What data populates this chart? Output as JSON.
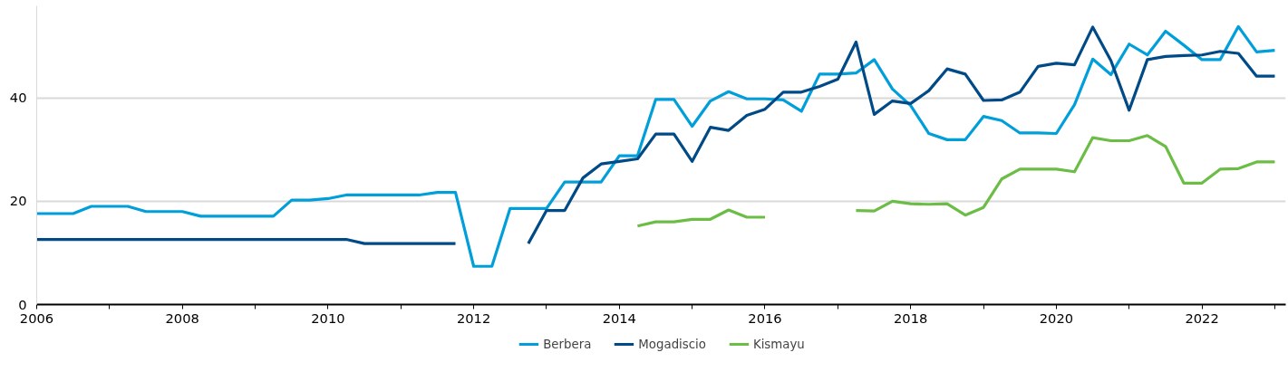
{
  "chart_data": {
    "type": "line",
    "x": [
      2006,
      2006.25,
      2006.5,
      2006.75,
      2007,
      2007.25,
      2007.5,
      2007.75,
      2008,
      2008.25,
      2008.5,
      2008.75,
      2009,
      2009.25,
      2009.5,
      2009.75,
      2010,
      2010.25,
      2010.5,
      2010.75,
      2011,
      2011.25,
      2011.5,
      2011.75,
      2012,
      2012.25,
      2012.5,
      2012.75,
      2013,
      2013.25,
      2013.5,
      2013.75,
      2014,
      2014.25,
      2014.5,
      2014.75,
      2015,
      2015.25,
      2015.5,
      2015.75,
      2016,
      2016.25,
      2016.5,
      2016.75,
      2017,
      2017.25,
      2017.5,
      2017.75,
      2018,
      2018.25,
      2018.5,
      2018.75,
      2019,
      2019.25,
      2019.5,
      2019.75,
      2020,
      2020.25,
      2020.5,
      2020.75,
      2021,
      2021.25,
      2021.5,
      2021.75,
      2022,
      2022.25,
      2022.5,
      2022.75,
      2023
    ],
    "series": [
      {
        "name": "Berbera",
        "color": "#009fda",
        "values": [
          17.6,
          17.6,
          17.6,
          19.0,
          19.0,
          19.0,
          18.0,
          18.0,
          18.0,
          17.1,
          17.1,
          17.1,
          17.1,
          17.1,
          20.2,
          20.2,
          20.5,
          21.2,
          21.2,
          21.2,
          21.2,
          21.2,
          21.7,
          21.7,
          7.4,
          7.4,
          18.6,
          18.6,
          18.6,
          23.7,
          23.7,
          23.7,
          28.8,
          28.8,
          39.7,
          39.7,
          34.5,
          39.4,
          41.2,
          39.8,
          39.8,
          39.6,
          37.4,
          44.6,
          44.6,
          44.8,
          47.4,
          41.7,
          38.5,
          33.1,
          31.9,
          31.9,
          36.4,
          35.6,
          33.2,
          33.2,
          33.1,
          38.7,
          47.5,
          44.5,
          50.4,
          48.3,
          52.9,
          50.2,
          47.4,
          47.4,
          53.8,
          48.9,
          49.2
        ]
      },
      {
        "name": "Mogadiscio",
        "color": "#004b87",
        "values": [
          12.6,
          12.6,
          12.6,
          12.6,
          12.6,
          12.6,
          12.6,
          12.6,
          12.6,
          12.6,
          12.6,
          12.6,
          12.6,
          12.6,
          12.6,
          12.6,
          12.6,
          12.6,
          11.8,
          11.8,
          11.8,
          11.8,
          11.8,
          11.8,
          null,
          null,
          null,
          11.8,
          18.2,
          18.2,
          24.5,
          27.2,
          27.7,
          28.2,
          33.0,
          33.0,
          27.7,
          34.3,
          33.7,
          36.6,
          37.8,
          41.1,
          41.1,
          42.2,
          43.6,
          50.8,
          36.8,
          39.4,
          38.9,
          41.4,
          45.6,
          44.6,
          39.5,
          39.6,
          41.1,
          46.1,
          46.7,
          46.4,
          53.7,
          47.2,
          37.6,
          47.4,
          48.0,
          48.2,
          48.3,
          49.0,
          48.6,
          44.2,
          44.2
        ]
      },
      {
        "name": "Kismayu",
        "color": "#6cbd45",
        "values": [
          null,
          null,
          null,
          null,
          null,
          null,
          null,
          null,
          null,
          null,
          null,
          null,
          null,
          null,
          null,
          null,
          null,
          null,
          null,
          null,
          null,
          null,
          null,
          null,
          null,
          null,
          null,
          null,
          null,
          null,
          null,
          null,
          null,
          15.2,
          16.0,
          16.0,
          16.5,
          16.5,
          18.3,
          16.9,
          16.9,
          null,
          null,
          null,
          null,
          18.2,
          18.1,
          20.0,
          19.5,
          19.4,
          19.5,
          17.3,
          18.8,
          24.3,
          26.2,
          26.2,
          26.2,
          25.7,
          32.3,
          31.7,
          31.7,
          32.7,
          30.6,
          23.5,
          23.5,
          26.2,
          26.3,
          27.6,
          27.6
        ]
      }
    ],
    "xlim": [
      2006,
      2023.15
    ],
    "xticks": [
      2006,
      {
        "value": 2007,
        "label": null
      },
      2008,
      {
        "value": 2009,
        "label": null
      },
      2010,
      {
        "value": 2011,
        "label": null
      },
      2012,
      {
        "value": 2013,
        "label": null
      },
      2014,
      {
        "value": 2015,
        "label": null
      },
      2016,
      {
        "value": 2017,
        "label": null
      },
      2018,
      {
        "value": 2019,
        "label": null
      },
      2020,
      {
        "value": 2021,
        "label": null
      },
      2022,
      {
        "value": 2023,
        "label": null
      }
    ],
    "ylim": [
      0,
      57.8
    ],
    "yticks": [
      0,
      20,
      40
    ],
    "grid": "y",
    "legend": "bottom",
    "marker": "none",
    "line_style": "solid"
  }
}
